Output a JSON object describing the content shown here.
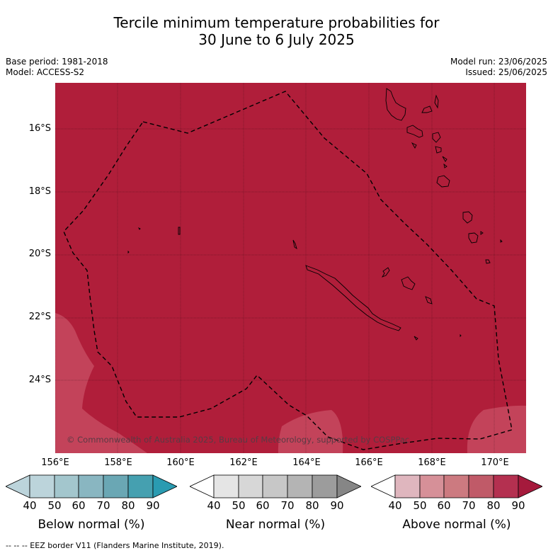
{
  "header": {
    "title_line1": "Tercile minimum temperature probabilities for",
    "title_line2": "30 June to 6 July 2025",
    "base_period": "Base period: 1981-2018",
    "model": "Model: ACCESS-S2",
    "model_run": "Model run: 23/06/2025",
    "issued": "Issued: 25/06/2025"
  },
  "map": {
    "fill_color": "#b01e3a",
    "light_patch_color": "#c3435a",
    "copyright": "© Commonwealth of Australia 2025, Bureau of Meteorology, supported by COSPPac",
    "lat_labels": [
      "16°S",
      "18°S",
      "20°S",
      "22°S",
      "24°S"
    ],
    "lon_labels": [
      "156°E",
      "158°E",
      "160°E",
      "162°E",
      "164°E",
      "166°E",
      "168°E",
      "170°E"
    ]
  },
  "legend": {
    "ticks": [
      "40",
      "50",
      "60",
      "70",
      "80",
      "90"
    ],
    "below_label": "Below normal (%)",
    "near_label": "Near normal (%)",
    "above_label": "Above normal (%)",
    "below_colors": [
      "#bcd4db",
      "#a3c6cd",
      "#89b6c1",
      "#6aa7b4",
      "#45a0b0",
      "#2a9bb1"
    ],
    "near_colors": [
      "#e5e5e5",
      "#d7d7d7",
      "#c7c7c7",
      "#b4b4b4",
      "#9c9c9c",
      "#868686"
    ],
    "above_colors": [
      "#dfb6be",
      "#d69098",
      "#cc7a80",
      "#c05a68",
      "#b43050",
      "#a51a3c"
    ]
  },
  "footer": {
    "eez_note": "-- -- -- EEZ border V11 (Flanders Marine Institute, 2019)."
  }
}
